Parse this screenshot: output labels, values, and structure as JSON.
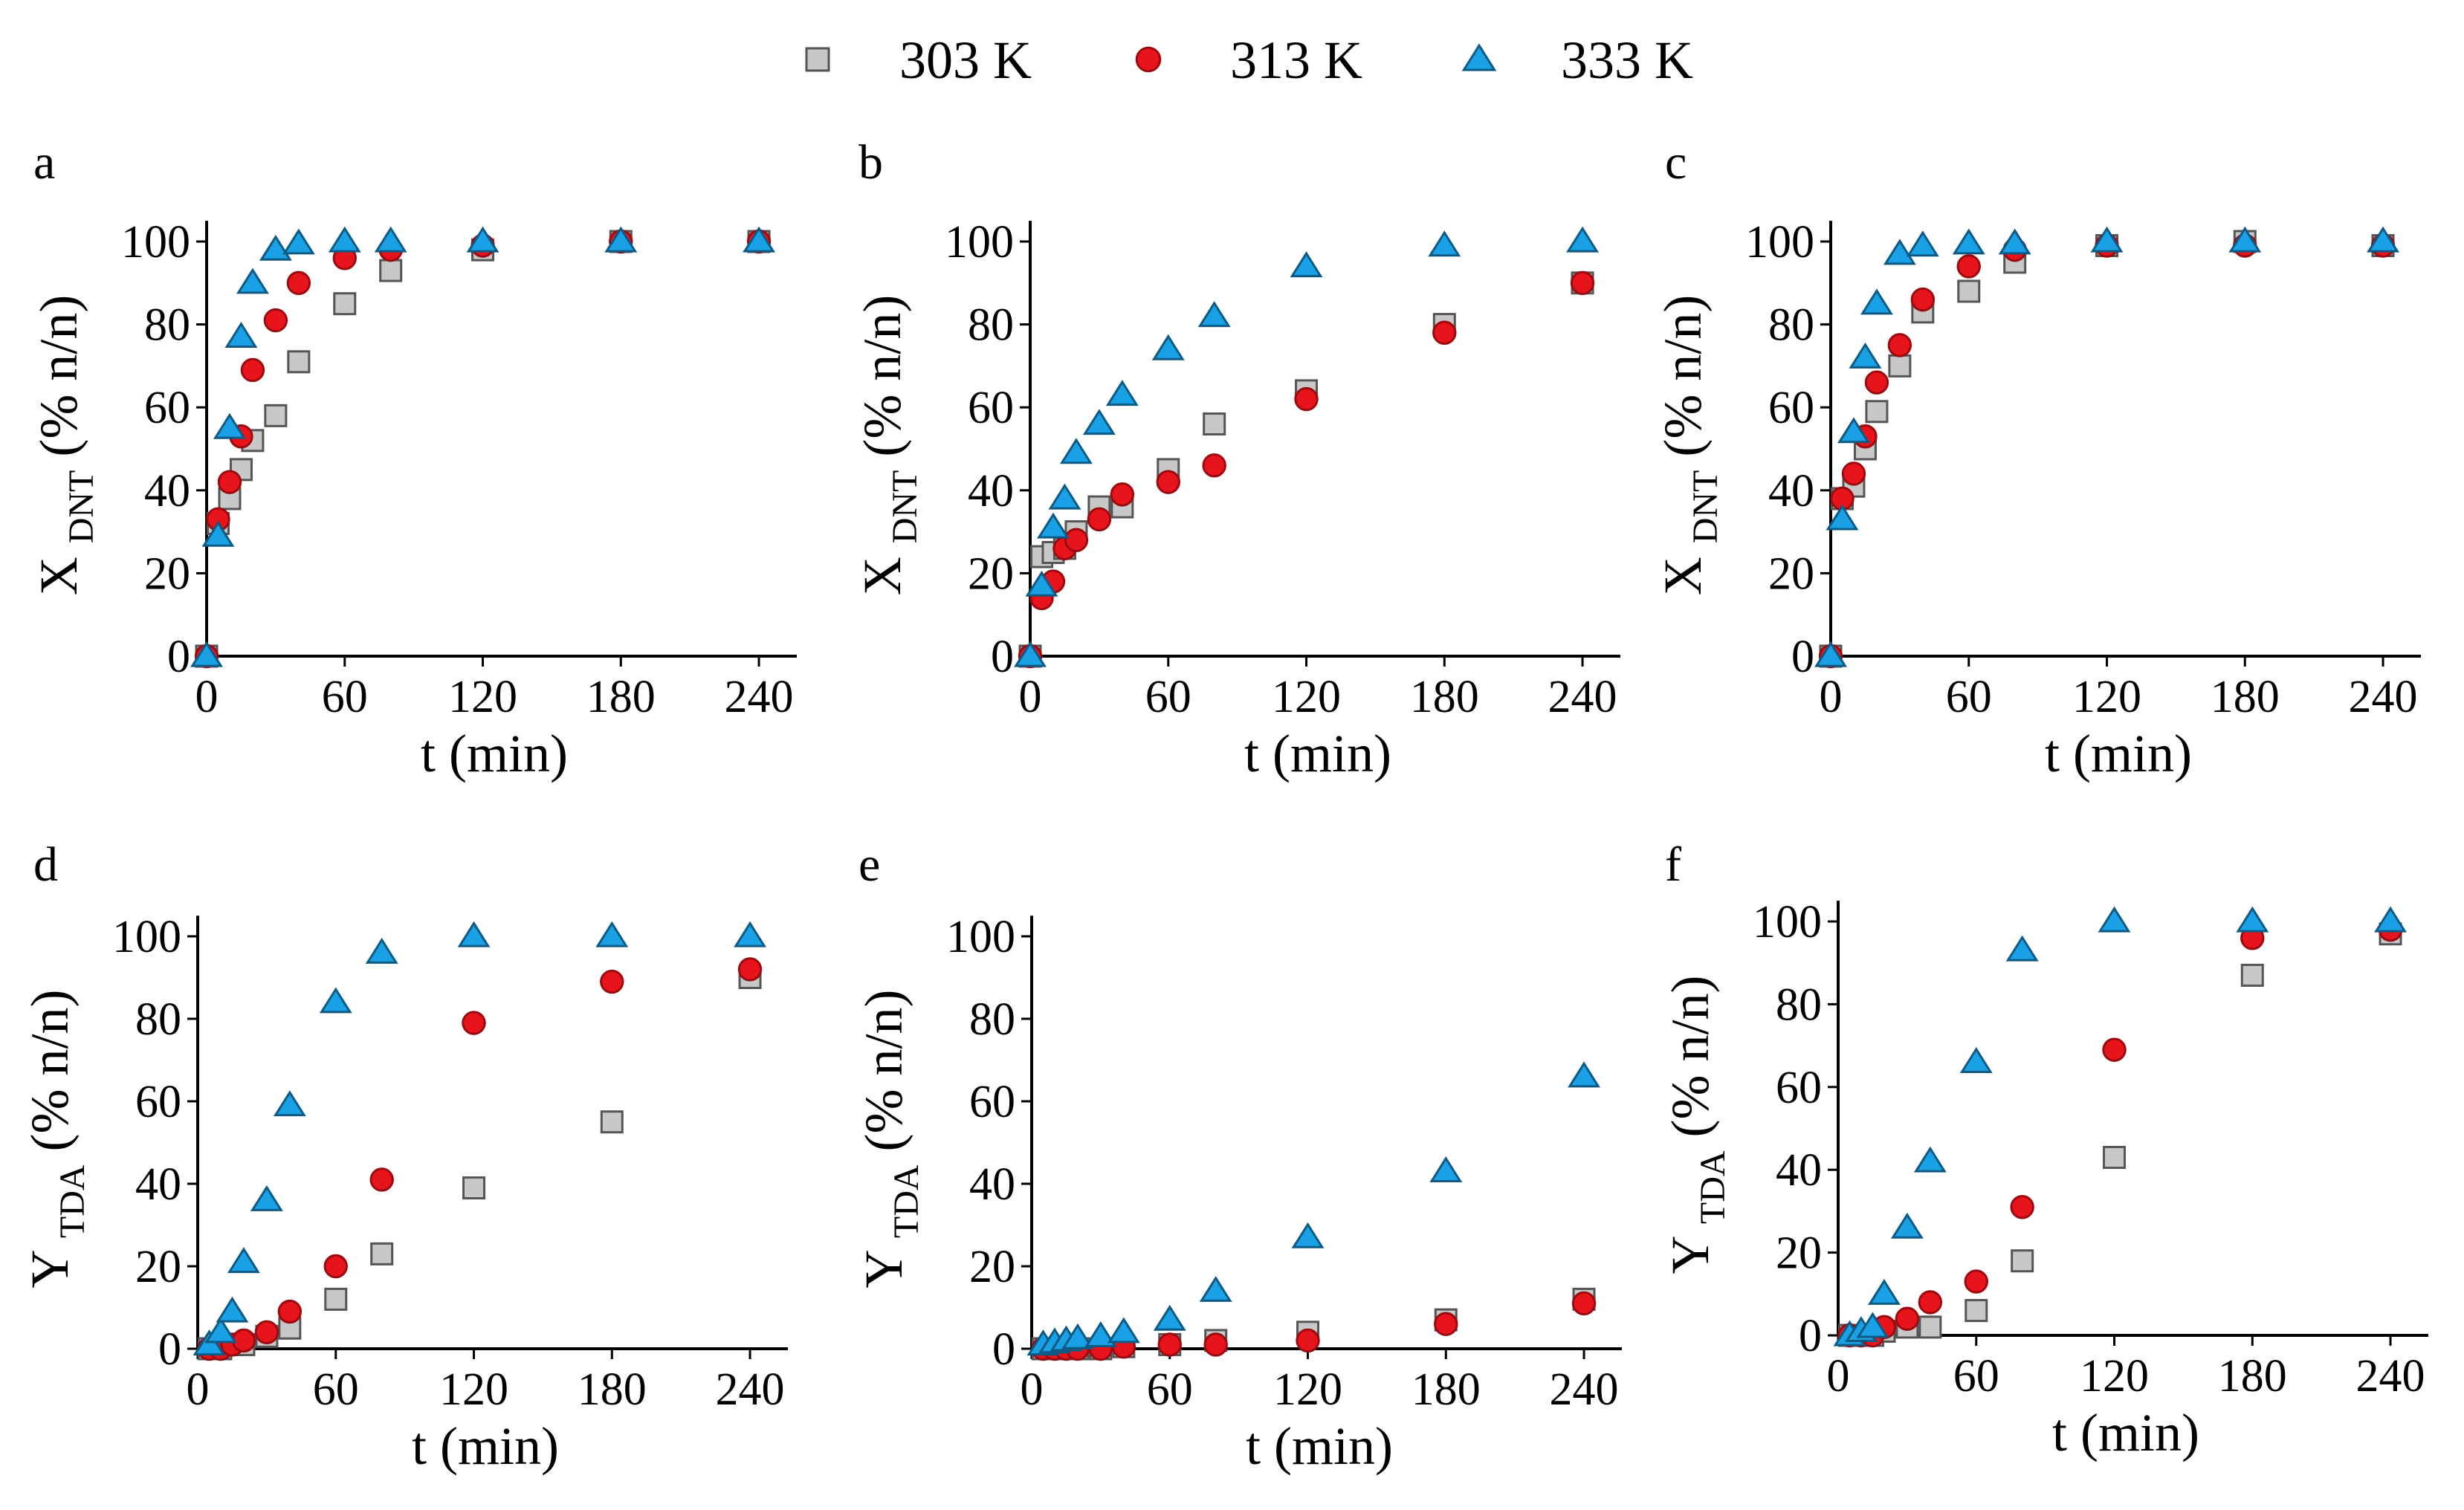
{
  "legend": [
    {
      "key": "303",
      "label": "303 K",
      "marker": "square",
      "color": "#c8c8c8"
    },
    {
      "key": "313",
      "label": "313 K",
      "marker": "circle",
      "color": "#e8141c"
    },
    {
      "key": "333",
      "label": "333 K",
      "marker": "triangle",
      "color": "#1aa0e4"
    }
  ],
  "chart_data": [
    {
      "panel": "a",
      "type": "scatter",
      "xlabel": "t (min)",
      "ylabel": {
        "main": "X",
        "sub": "DNT",
        "unit": "(% n/n)"
      },
      "xlim": [
        0,
        250
      ],
      "ylim": [
        0,
        100
      ],
      "xticks": [
        0,
        60,
        120,
        180,
        240
      ],
      "yticks": [
        0,
        20,
        40,
        60,
        80,
        100
      ],
      "series": [
        {
          "name": "303 K",
          "x": [
            0,
            5,
            10,
            15,
            20,
            30,
            40,
            60,
            80,
            120,
            180,
            240
          ],
          "y": [
            0,
            32,
            38,
            45,
            52,
            58,
            71,
            85,
            93,
            98,
            100,
            100
          ]
        },
        {
          "name": "313 K",
          "x": [
            0,
            5,
            10,
            15,
            20,
            30,
            40,
            60,
            80,
            120,
            180,
            240
          ],
          "y": [
            0,
            33,
            42,
            53,
            69,
            81,
            90,
            96,
            98,
            99,
            100,
            100
          ]
        },
        {
          "name": "333 K",
          "x": [
            0,
            5,
            10,
            15,
            20,
            30,
            40,
            60,
            80,
            120,
            180,
            240
          ],
          "y": [
            0,
            29,
            55,
            77,
            90,
            98,
            99.5,
            100,
            100,
            100,
            100,
            100
          ]
        }
      ]
    },
    {
      "panel": "b",
      "type": "scatter",
      "xlabel": "t (min)",
      "ylabel": {
        "main": "X",
        "sub": "DNT",
        "unit": "(% n/n)"
      },
      "xlim": [
        0,
        250
      ],
      "ylim": [
        0,
        100
      ],
      "xticks": [
        0,
        60,
        120,
        180,
        240
      ],
      "yticks": [
        0,
        20,
        40,
        60,
        80,
        100
      ],
      "series": [
        {
          "name": "303 K",
          "x": [
            0,
            5,
            10,
            15,
            20,
            30,
            40,
            60,
            80,
            120,
            180,
            240
          ],
          "y": [
            0,
            24,
            25,
            26,
            30,
            36,
            36,
            45,
            56,
            64,
            80,
            90
          ]
        },
        {
          "name": "313 K",
          "x": [
            0,
            5,
            10,
            15,
            20,
            30,
            40,
            60,
            80,
            120,
            180,
            240
          ],
          "y": [
            0,
            14,
            18,
            26,
            28,
            33,
            39,
            42,
            46,
            62,
            78,
            90
          ]
        },
        {
          "name": "333 K",
          "x": [
            0,
            5,
            10,
            15,
            20,
            30,
            40,
            60,
            80,
            120,
            180,
            240
          ],
          "y": [
            0,
            17,
            31,
            38,
            49,
            56,
            63,
            74,
            82,
            94,
            99,
            100
          ]
        }
      ]
    },
    {
      "panel": "c",
      "type": "scatter",
      "xlabel": "t (min)",
      "ylabel": {
        "main": "X",
        "sub": "DNT",
        "unit": "(% n/n)"
      },
      "xlim": [
        0,
        250
      ],
      "ylim": [
        0,
        100
      ],
      "xticks": [
        0,
        60,
        120,
        180,
        240
      ],
      "yticks": [
        0,
        20,
        40,
        60,
        80,
        100
      ],
      "series": [
        {
          "name": "303 K",
          "x": [
            0,
            5,
            10,
            15,
            20,
            30,
            40,
            60,
            80,
            120,
            180,
            240
          ],
          "y": [
            0,
            38,
            41,
            50,
            59,
            70,
            83,
            88,
            95,
            99,
            100,
            99
          ]
        },
        {
          "name": "313 K",
          "x": [
            0,
            5,
            10,
            15,
            20,
            30,
            40,
            60,
            80,
            120,
            180,
            240
          ],
          "y": [
            0,
            38,
            44,
            53,
            66,
            75,
            86,
            94,
            98,
            99,
            99,
            99
          ]
        },
        {
          "name": "333 K",
          "x": [
            0,
            5,
            10,
            15,
            20,
            30,
            40,
            60,
            80,
            120,
            180,
            240
          ],
          "y": [
            0,
            33,
            54,
            72,
            85,
            97,
            99,
            99.5,
            99.5,
            100,
            100,
            100
          ]
        }
      ]
    },
    {
      "panel": "d",
      "type": "scatter",
      "xlabel": "t (min)",
      "ylabel": {
        "main": "Y",
        "sub": "TDA",
        "unit": "(% n/n)"
      },
      "xlim": [
        0,
        250
      ],
      "ylim": [
        0,
        100
      ],
      "xticks": [
        0,
        60,
        120,
        180,
        240
      ],
      "yticks": [
        0,
        20,
        40,
        60,
        80,
        100
      ],
      "series": [
        {
          "name": "303 K",
          "x": [
            5,
            10,
            15,
            20,
            30,
            40,
            60,
            80,
            120,
            180,
            240
          ],
          "y": [
            0,
            0,
            1,
            1,
            3,
            5,
            12,
            23,
            39,
            55,
            90
          ]
        },
        {
          "name": "313 K",
          "x": [
            5,
            10,
            15,
            20,
            30,
            40,
            60,
            80,
            120,
            180,
            240
          ],
          "y": [
            0,
            0,
            1,
            2,
            4,
            9,
            20,
            41,
            79,
            89,
            92
          ]
        },
        {
          "name": "333 K",
          "x": [
            5,
            10,
            15,
            20,
            30,
            40,
            60,
            80,
            120,
            180,
            240
          ],
          "y": [
            1,
            4,
            9,
            21,
            36,
            59,
            84,
            96,
            100,
            100,
            100
          ]
        }
      ]
    },
    {
      "panel": "e",
      "type": "scatter",
      "xlabel": "t (min)",
      "ylabel": {
        "main": "Y",
        "sub": "TDA",
        "unit": "(% n/n)"
      },
      "xlim": [
        0,
        250
      ],
      "ylim": [
        0,
        100
      ],
      "xticks": [
        0,
        60,
        120,
        180,
        240
      ],
      "yticks": [
        0,
        20,
        40,
        60,
        80,
        100
      ],
      "series": [
        {
          "name": "303 K",
          "x": [
            5,
            10,
            15,
            20,
            30,
            40,
            60,
            80,
            120,
            180,
            240
          ],
          "y": [
            0,
            0,
            0,
            0,
            0,
            0.5,
            1,
            2,
            4,
            7,
            12
          ]
        },
        {
          "name": "313 K",
          "x": [
            5,
            10,
            15,
            20,
            30,
            40,
            60,
            80,
            120,
            180,
            240
          ],
          "y": [
            0,
            0,
            0,
            0,
            0,
            0.5,
            1,
            1,
            2,
            6,
            11
          ]
        },
        {
          "name": "333 K",
          "x": [
            5,
            10,
            15,
            20,
            30,
            40,
            60,
            80,
            120,
            180,
            240
          ],
          "y": [
            1,
            1.5,
            2,
            2.5,
            3,
            4,
            7,
            14,
            27,
            43,
            66
          ]
        }
      ]
    },
    {
      "panel": "f",
      "type": "scatter",
      "xlabel": "t (min)",
      "ylabel": {
        "main": "Y",
        "sub": "TDA",
        "unit": "(% n/n)"
      },
      "xlim": [
        0,
        250
      ],
      "ylim": [
        0,
        100
      ],
      "xticks": [
        0,
        60,
        120,
        180,
        240
      ],
      "yticks": [
        0,
        20,
        40,
        60,
        80,
        100
      ],
      "series": [
        {
          "name": "303 K",
          "x": [
            5,
            10,
            15,
            20,
            30,
            40,
            60,
            80,
            120,
            180,
            240
          ],
          "y": [
            0,
            0,
            0,
            1,
            2,
            2,
            6,
            18,
            43,
            87,
            97
          ]
        },
        {
          "name": "313 K",
          "x": [
            5,
            10,
            15,
            20,
            30,
            40,
            60,
            80,
            120,
            180,
            240
          ],
          "y": [
            0,
            0,
            0,
            2,
            4,
            8,
            13,
            31,
            69,
            96,
            98
          ]
        },
        {
          "name": "333 K",
          "x": [
            5,
            10,
            15,
            20,
            30,
            40,
            60,
            80,
            120,
            180,
            240
          ],
          "y": [
            0,
            1,
            2,
            10,
            26,
            42,
            66,
            93,
            100,
            100,
            100
          ]
        }
      ]
    }
  ]
}
